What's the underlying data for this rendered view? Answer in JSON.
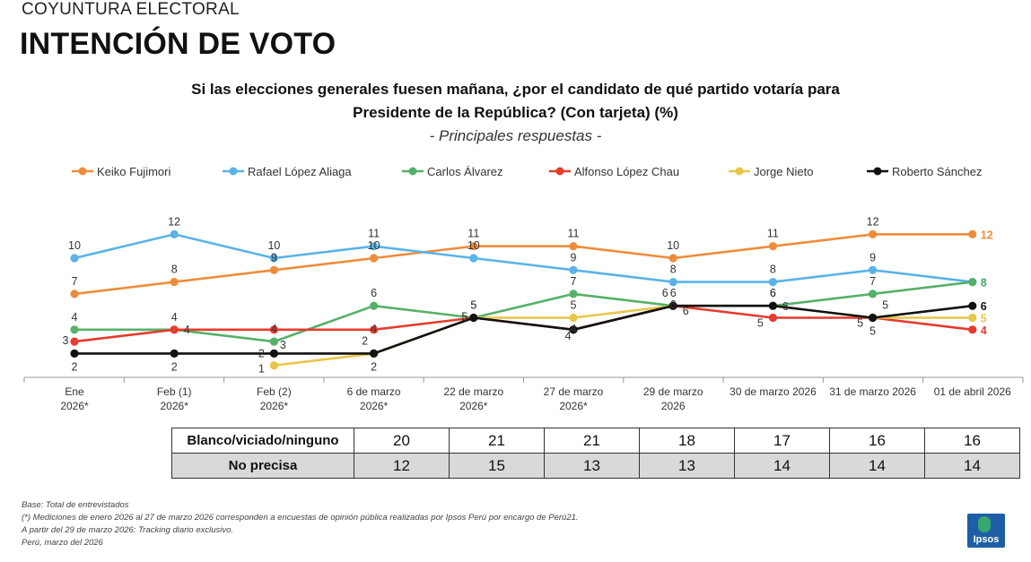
{
  "header": {
    "kicker": "COYUNTURA ELECTORAL",
    "title": "INTENCIÓN DE VOTO",
    "question_line1": "Si las elecciones generales fuesen mañana, ¿por el candidato de qué partido votaría para",
    "question_line2": "Presidente de la República? (Con tarjeta) (%)",
    "subtitle": "- Principales respuestas -"
  },
  "chart_data": {
    "type": "line",
    "categories": [
      [
        "Ene",
        "2026*"
      ],
      [
        "Feb (1)",
        "2026*"
      ],
      [
        "Feb (2)",
        "2026*"
      ],
      [
        "6 de marzo",
        "2026*"
      ],
      [
        "22 de marzo",
        "2026*"
      ],
      [
        "27 de marzo",
        "2026*"
      ],
      [
        "29 de marzo",
        "2026"
      ],
      [
        "30 de marzo 2026"
      ],
      [
        "31 de marzo 2026"
      ],
      [
        "01 de abril 2026"
      ]
    ],
    "ylim": [
      0,
      14
    ],
    "grid": false,
    "legend_position": "top",
    "series": [
      {
        "name": "Keiko Fujimori",
        "color": "#ef8c3c",
        "values": [
          7,
          8,
          9,
          10,
          11,
          11,
          10,
          11,
          12,
          12
        ]
      },
      {
        "name": "Rafael López Aliaga",
        "color": "#5ab3e6",
        "values": [
          10,
          12,
          10,
          11,
          10,
          9,
          8,
          8,
          9,
          8
        ]
      },
      {
        "name": "Carlos Álvarez",
        "color": "#55b168",
        "values": [
          4,
          4,
          3,
          6,
          5,
          7,
          6,
          6,
          7,
          8
        ]
      },
      {
        "name": "Alfonso López Chau",
        "color": "#e63b2e",
        "values": [
          3,
          4,
          4,
          4,
          5,
          4,
          6,
          5,
          5,
          4
        ]
      },
      {
        "name": "Jorge Nieto",
        "color": "#e8c64a",
        "values": [
          null,
          null,
          1,
          2,
          5,
          5,
          6,
          6,
          5,
          5
        ]
      },
      {
        "name": "Roberto Sánchez",
        "color": "#111111",
        "values": [
          2,
          2,
          2,
          2,
          5,
          4,
          6,
          6,
          5,
          6
        ]
      }
    ]
  },
  "table": {
    "rows": [
      {
        "label": "Blanco/viciado/ninguno",
        "values": [
          "20",
          "21",
          "21",
          "18",
          "17",
          "16",
          "16"
        ]
      },
      {
        "label": "No precisa",
        "values": [
          "12",
          "15",
          "13",
          "13",
          "14",
          "14",
          "14"
        ]
      }
    ]
  },
  "footnotes": {
    "base": "Base: Total de entrevistados",
    "note1": "(*) Mediciones de enero 2026 al 27 de marzo 2026 corresponden a encuestas de opinión pública realizadas por Ipsos Perú por encargo de Perú21.",
    "note2": "A partir del 29 de marzo 2026: Tracking diario exclusivo.",
    "note3": "Perú, marzo del 2026"
  },
  "logo": {
    "text": "Ipsos"
  }
}
